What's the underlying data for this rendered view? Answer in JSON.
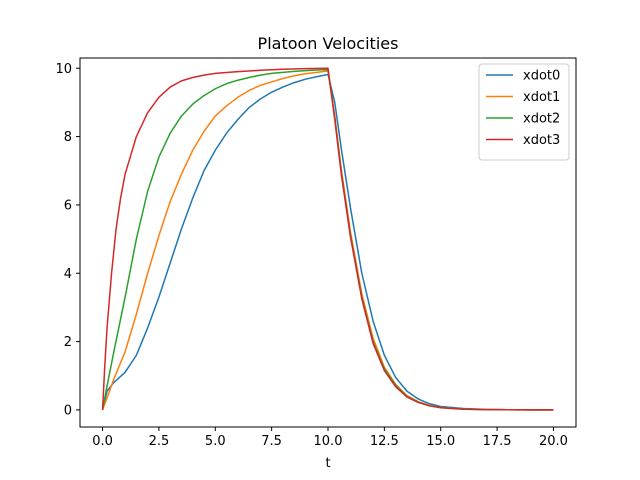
{
  "chart_data": {
    "type": "line",
    "title": "Platoon Velocities",
    "xlabel": "t",
    "ylabel": "",
    "xlim": [
      -1.0,
      21.0
    ],
    "ylim": [
      -0.5,
      10.3
    ],
    "xticks": [
      0,
      2.5,
      5,
      7.5,
      10,
      12.5,
      15,
      17.5,
      20
    ],
    "xtick_labels": [
      "0.0",
      "2.5",
      "5.0",
      "7.5",
      "10.0",
      "12.5",
      "15.0",
      "17.5",
      "20.0"
    ],
    "yticks": [
      0,
      2,
      4,
      6,
      8,
      10
    ],
    "ytick_labels": [
      "0",
      "2",
      "4",
      "6",
      "8",
      "10"
    ],
    "grid": false,
    "legend_position": "top-right",
    "series": [
      {
        "name": "xdot0",
        "color": "#1f77b4",
        "x": [
          0,
          0.2,
          0.5,
          1.0,
          1.5,
          2.0,
          2.5,
          3.0,
          3.5,
          4.0,
          4.5,
          5.0,
          5.5,
          6.0,
          6.5,
          7.0,
          7.5,
          8.0,
          8.5,
          9.0,
          9.5,
          10.0,
          10.3,
          10.6,
          11.0,
          11.5,
          12.0,
          12.5,
          13.0,
          13.5,
          14.0,
          14.5,
          15.0,
          16.0,
          17.0,
          18.0,
          19.0,
          20.0
        ],
        "y": [
          0,
          0.55,
          0.8,
          1.1,
          1.6,
          2.4,
          3.3,
          4.3,
          5.3,
          6.2,
          7.0,
          7.6,
          8.1,
          8.5,
          8.85,
          9.1,
          9.3,
          9.45,
          9.58,
          9.68,
          9.75,
          9.82,
          9.0,
          7.6,
          5.9,
          4.0,
          2.6,
          1.6,
          0.95,
          0.55,
          0.32,
          0.18,
          0.1,
          0.04,
          0.015,
          0.005,
          0.002,
          0.0
        ]
      },
      {
        "name": "xdot1",
        "color": "#ff7f0e",
        "x": [
          0,
          0.2,
          0.5,
          1.0,
          1.5,
          2.0,
          2.5,
          3.0,
          3.5,
          4.0,
          4.5,
          5.0,
          5.5,
          6.0,
          6.5,
          7.0,
          7.5,
          8.0,
          8.5,
          9.0,
          9.5,
          10.0,
          10.3,
          10.6,
          11.0,
          11.5,
          12.0,
          12.5,
          13.0,
          13.5,
          14.0,
          14.5,
          15.0,
          16.0,
          17.0,
          18.0,
          19.0,
          20.0
        ],
        "y": [
          0,
          0.35,
          0.9,
          1.7,
          2.8,
          4.0,
          5.1,
          6.1,
          6.9,
          7.6,
          8.15,
          8.6,
          8.9,
          9.15,
          9.35,
          9.5,
          9.6,
          9.7,
          9.78,
          9.84,
          9.88,
          9.92,
          8.6,
          7.0,
          5.2,
          3.4,
          2.1,
          1.25,
          0.75,
          0.42,
          0.24,
          0.13,
          0.07,
          0.025,
          0.01,
          0.004,
          0.001,
          0.0
        ]
      },
      {
        "name": "xdot2",
        "color": "#2ca02c",
        "x": [
          0,
          0.2,
          0.5,
          1.0,
          1.5,
          2.0,
          2.5,
          3.0,
          3.5,
          4.0,
          4.5,
          5.0,
          5.5,
          6.0,
          6.5,
          7.0,
          7.5,
          8.0,
          8.5,
          9.0,
          9.5,
          10.0,
          10.3,
          10.6,
          11.0,
          11.5,
          12.0,
          12.5,
          13.0,
          13.5,
          14.0,
          14.5,
          15.0,
          16.0,
          17.0,
          18.0,
          19.0,
          20.0
        ],
        "y": [
          0,
          0.7,
          1.7,
          3.3,
          5.0,
          6.4,
          7.4,
          8.1,
          8.6,
          8.95,
          9.2,
          9.4,
          9.55,
          9.65,
          9.73,
          9.8,
          9.85,
          9.88,
          9.91,
          9.93,
          9.95,
          9.96,
          8.55,
          6.9,
          5.1,
          3.3,
          2.0,
          1.2,
          0.72,
          0.4,
          0.23,
          0.12,
          0.07,
          0.025,
          0.01,
          0.004,
          0.001,
          0.0
        ]
      },
      {
        "name": "xdot3",
        "color": "#d62728",
        "x": [
          0,
          0.1,
          0.2,
          0.4,
          0.6,
          0.8,
          1.0,
          1.5,
          2.0,
          2.5,
          3.0,
          3.5,
          4.0,
          4.5,
          5.0,
          6.0,
          7.0,
          8.0,
          9.0,
          10.0,
          10.3,
          10.6,
          11.0,
          11.5,
          12.0,
          12.5,
          13.0,
          13.5,
          14.0,
          14.5,
          15.0,
          16.0,
          17.0,
          18.0,
          19.0,
          20.0
        ],
        "y": [
          0,
          1.3,
          2.4,
          4.0,
          5.3,
          6.2,
          6.9,
          8.0,
          8.7,
          9.15,
          9.45,
          9.63,
          9.73,
          9.8,
          9.85,
          9.9,
          9.94,
          9.97,
          9.99,
          10.0,
          8.5,
          6.85,
          5.05,
          3.25,
          1.95,
          1.15,
          0.68,
          0.38,
          0.22,
          0.12,
          0.065,
          0.02,
          0.008,
          0.003,
          0.001,
          0.0
        ]
      }
    ]
  }
}
